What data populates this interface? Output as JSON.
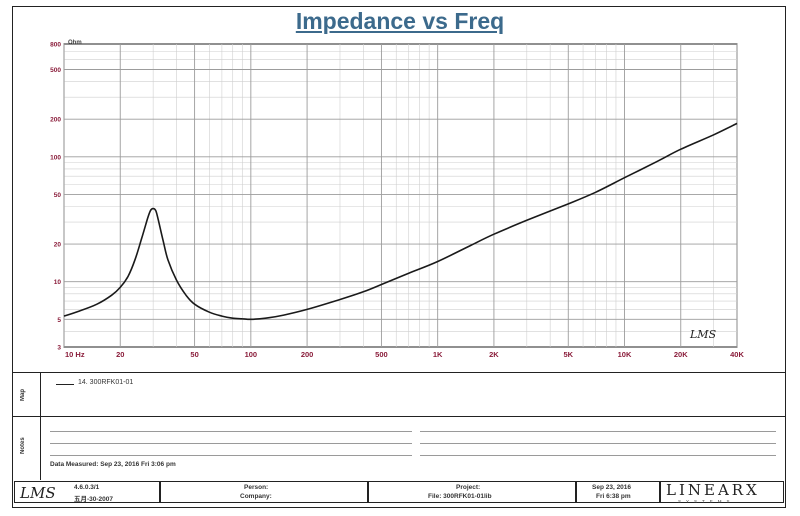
{
  "chart_data": {
    "type": "line",
    "title": "Impedance vs Freq",
    "y_unit": "Ohm",
    "x_scale": "log",
    "y_scale": "log",
    "xlim": [
      10,
      40000
    ],
    "ylim": [
      3,
      800
    ],
    "x_ticks": [
      {
        "value": 10,
        "label": "10 Hz"
      },
      {
        "value": 20,
        "label": "20"
      },
      {
        "value": 50,
        "label": "50"
      },
      {
        "value": 100,
        "label": "100"
      },
      {
        "value": 200,
        "label": "200"
      },
      {
        "value": 500,
        "label": "500"
      },
      {
        "value": 1000,
        "label": "1K"
      },
      {
        "value": 2000,
        "label": "2K"
      },
      {
        "value": 5000,
        "label": "5K"
      },
      {
        "value": 10000,
        "label": "10K"
      },
      {
        "value": 20000,
        "label": "20K"
      },
      {
        "value": 40000,
        "label": "40K"
      }
    ],
    "y_ticks": [
      {
        "value": 800,
        "label": "800"
      },
      {
        "value": 500,
        "label": "500"
      },
      {
        "value": 200,
        "label": "200"
      },
      {
        "value": 100,
        "label": "100"
      },
      {
        "value": 50,
        "label": "50"
      },
      {
        "value": 20,
        "label": "20"
      },
      {
        "value": 10,
        "label": "10"
      },
      {
        "value": 5,
        "label": "5"
      },
      {
        "value": 3,
        "label": "3"
      }
    ],
    "grid": true,
    "series": [
      {
        "name": "14. 300RFK01-01",
        "color": "#1a1a1a",
        "x": [
          10,
          12,
          15,
          18,
          20,
          22,
          24,
          26,
          28,
          29,
          30,
          31,
          32,
          34,
          36,
          40,
          45,
          50,
          60,
          70,
          80,
          90,
          100,
          120,
          150,
          200,
          300,
          400,
          500,
          700,
          1000,
          1500,
          2000,
          3000,
          5000,
          7000,
          10000,
          15000,
          20000,
          30000,
          40000
        ],
        "y": [
          5.3,
          5.8,
          6.6,
          7.8,
          9.0,
          11.0,
          15.0,
          22.0,
          32.0,
          37.0,
          38.5,
          37.0,
          31.0,
          21.0,
          15.0,
          10.3,
          7.8,
          6.6,
          5.7,
          5.3,
          5.1,
          5.05,
          5.0,
          5.1,
          5.4,
          6.0,
          7.2,
          8.3,
          9.5,
          11.7,
          14.5,
          19.5,
          24.0,
          31.0,
          42.0,
          52.0,
          68.0,
          92.0,
          115.0,
          150.0,
          185.0
        ]
      }
    ]
  },
  "footer": {
    "version": "4.6.0.3/1",
    "version_date": "五月-30-2007",
    "person_label": "Person:",
    "company_label": "Company:",
    "project_label": "Project:",
    "file_label": "File: 300RFK01-01lib",
    "date": "Sep 23, 2016",
    "time": "Fri 6:38 pm",
    "logo_lms": "LMS",
    "logo_linearx": "LINEARX",
    "logo_systems": "SYSTEMS"
  },
  "panels": {
    "map_label": "Map",
    "notes_label": "Notes",
    "measured": "Data Measured: Sep 23, 2016  Fri  3:06 pm"
  },
  "plot_watermark": "LMS"
}
